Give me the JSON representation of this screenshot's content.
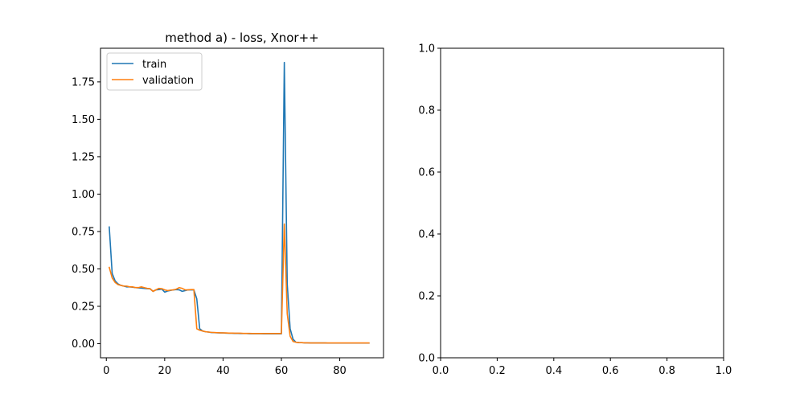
{
  "chart_data": [
    {
      "type": "line",
      "title": "method a) - loss, Xnor++",
      "xlabel": "",
      "ylabel": "",
      "xlim": [
        -2,
        95
      ],
      "ylim": [
        -0.094,
        1.975
      ],
      "xticks": [
        0,
        20,
        40,
        60,
        80
      ],
      "yticks": [
        0.0,
        0.25,
        0.5,
        0.75,
        1.0,
        1.25,
        1.5,
        1.75
      ],
      "xtick_labels": [
        "0",
        "20",
        "40",
        "60",
        "80"
      ],
      "ytick_labels": [
        "0.00",
        "0.25",
        "0.50",
        "0.75",
        "1.00",
        "1.25",
        "1.50",
        "1.75"
      ],
      "grid": false,
      "legend": "upper-left",
      "series": [
        {
          "name": "train",
          "color": "#1f77b4",
          "x": [
            1,
            2,
            3,
            4,
            5,
            6,
            7,
            8,
            9,
            10,
            11,
            12,
            13,
            14,
            15,
            16,
            17,
            18,
            19,
            20,
            21,
            22,
            23,
            24,
            25,
            26,
            27,
            28,
            29,
            30,
            31,
            32,
            33,
            34,
            35,
            36,
            37,
            38,
            39,
            40,
            41,
            42,
            43,
            44,
            45,
            46,
            47,
            48,
            49,
            50,
            51,
            52,
            53,
            54,
            55,
            56,
            57,
            58,
            59,
            60,
            61,
            62,
            63,
            64,
            65,
            66,
            67,
            68,
            69,
            70,
            71,
            72,
            73,
            74,
            75,
            76,
            77,
            78,
            79,
            80,
            81,
            82,
            83,
            84,
            85,
            86,
            87,
            88,
            89,
            90
          ],
          "y": [
            0.78,
            0.47,
            0.42,
            0.4,
            0.39,
            0.385,
            0.38,
            0.38,
            0.378,
            0.375,
            0.373,
            0.372,
            0.37,
            0.368,
            0.367,
            0.35,
            0.36,
            0.362,
            0.365,
            0.345,
            0.352,
            0.356,
            0.36,
            0.362,
            0.36,
            0.35,
            0.355,
            0.36,
            0.36,
            0.36,
            0.3,
            0.1,
            0.085,
            0.08,
            0.078,
            0.075,
            0.074,
            0.073,
            0.072,
            0.072,
            0.071,
            0.07,
            0.07,
            0.069,
            0.069,
            0.068,
            0.068,
            0.068,
            0.067,
            0.067,
            0.067,
            0.067,
            0.067,
            0.066,
            0.066,
            0.066,
            0.066,
            0.066,
            0.066,
            0.066,
            1.88,
            0.4,
            0.1,
            0.03,
            0.01,
            0.008,
            0.007,
            0.006,
            0.006,
            0.005,
            0.005,
            0.005,
            0.005,
            0.005,
            0.005,
            0.004,
            0.004,
            0.004,
            0.004,
            0.004,
            0.004,
            0.004,
            0.004,
            0.004,
            0.004,
            0.004,
            0.004,
            0.004,
            0.004,
            0.004
          ]
        },
        {
          "name": "validation",
          "color": "#ff7f0e",
          "x": [
            1,
            2,
            3,
            4,
            5,
            6,
            7,
            8,
            9,
            10,
            11,
            12,
            13,
            14,
            15,
            16,
            17,
            18,
            19,
            20,
            21,
            22,
            23,
            24,
            25,
            26,
            27,
            28,
            29,
            30,
            31,
            32,
            33,
            34,
            35,
            36,
            37,
            38,
            39,
            40,
            41,
            42,
            43,
            44,
            45,
            46,
            47,
            48,
            49,
            50,
            51,
            52,
            53,
            54,
            55,
            56,
            57,
            58,
            59,
            60,
            61,
            62,
            63,
            64,
            65,
            66,
            67,
            68,
            69,
            70,
            71,
            72,
            73,
            74,
            75,
            76,
            77,
            78,
            79,
            80,
            81,
            82,
            83,
            84,
            85,
            86,
            87,
            88,
            89,
            90
          ],
          "y": [
            0.51,
            0.44,
            0.41,
            0.395,
            0.39,
            0.385,
            0.385,
            0.38,
            0.38,
            0.375,
            0.375,
            0.38,
            0.375,
            0.37,
            0.368,
            0.35,
            0.36,
            0.37,
            0.368,
            0.36,
            0.355,
            0.358,
            0.36,
            0.365,
            0.375,
            0.37,
            0.36,
            0.36,
            0.362,
            0.362,
            0.1,
            0.09,
            0.085,
            0.08,
            0.078,
            0.076,
            0.075,
            0.074,
            0.073,
            0.072,
            0.072,
            0.071,
            0.071,
            0.07,
            0.07,
            0.07,
            0.069,
            0.069,
            0.069,
            0.068,
            0.068,
            0.068,
            0.068,
            0.068,
            0.068,
            0.068,
            0.068,
            0.068,
            0.068,
            0.068,
            0.8,
            0.2,
            0.05,
            0.015,
            0.01,
            0.008,
            0.007,
            0.006,
            0.006,
            0.005,
            0.005,
            0.005,
            0.005,
            0.005,
            0.005,
            0.005,
            0.005,
            0.005,
            0.005,
            0.005,
            0.005,
            0.005,
            0.005,
            0.005,
            0.005,
            0.005,
            0.005,
            0.005,
            0.005,
            0.005
          ]
        }
      ]
    },
    {
      "type": "line",
      "title": "",
      "xlabel": "",
      "ylabel": "",
      "xlim": [
        0,
        1
      ],
      "ylim": [
        0,
        1
      ],
      "xticks": [
        0.0,
        0.2,
        0.4,
        0.6,
        0.8,
        1.0
      ],
      "yticks": [
        0.0,
        0.2,
        0.4,
        0.6,
        0.8,
        1.0
      ],
      "xtick_labels": [
        "0.0",
        "0.2",
        "0.4",
        "0.6",
        "0.8",
        "1.0"
      ],
      "ytick_labels": [
        "0.0",
        "0.2",
        "0.4",
        "0.6",
        "0.8",
        "1.0"
      ],
      "grid": false,
      "series": []
    }
  ]
}
